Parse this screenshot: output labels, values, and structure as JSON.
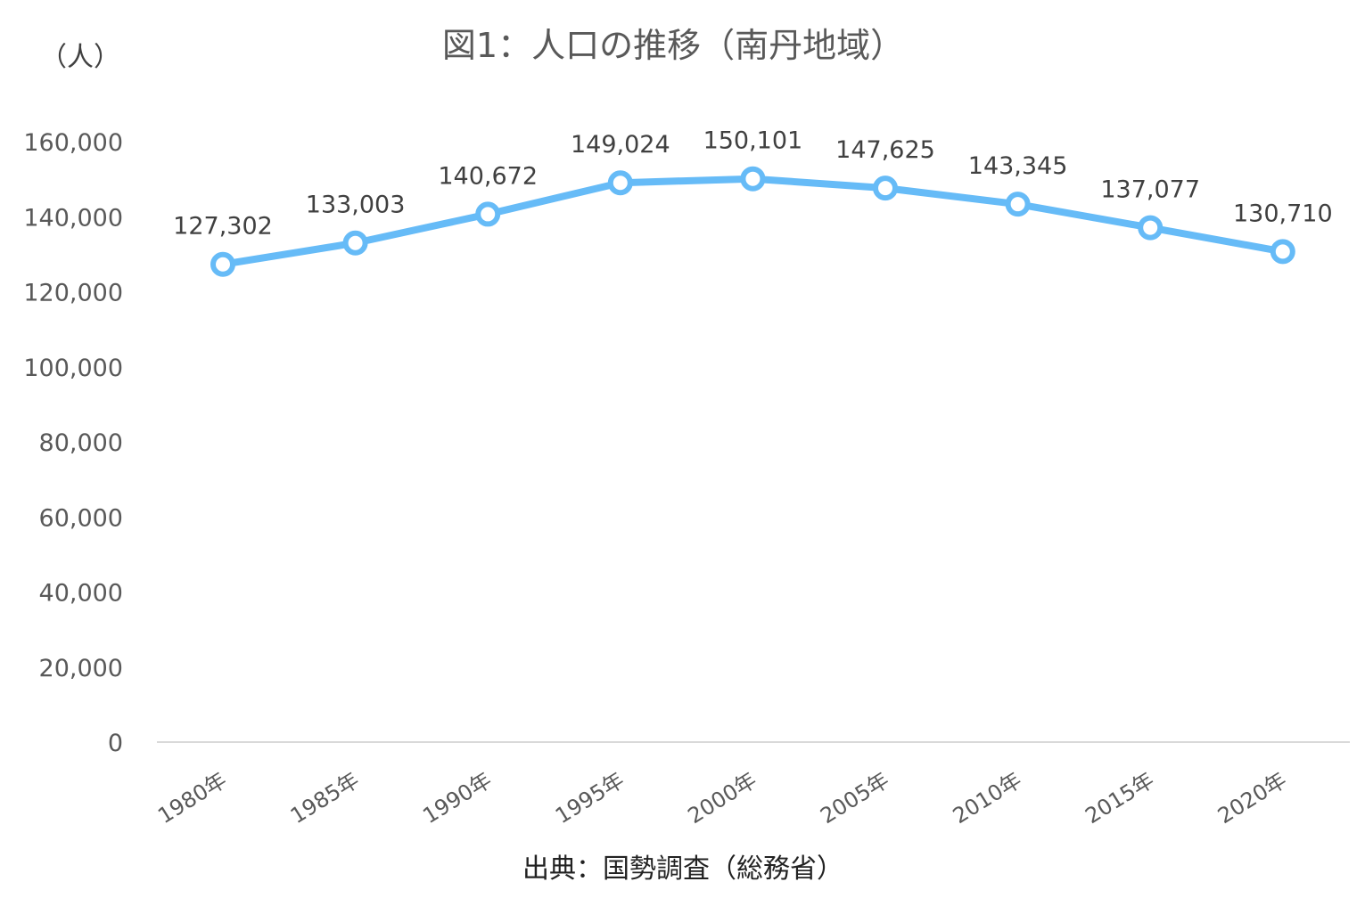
{
  "chart_data": {
    "type": "line",
    "title": "図1：人口の推移（南丹地域）",
    "ylabel": "（人）",
    "source": "出典：国勢調査（総務省）",
    "categories": [
      "1980年",
      "1985年",
      "1990年",
      "1995年",
      "2000年",
      "2005年",
      "2010年",
      "2015年",
      "2020年"
    ],
    "values": [
      127302,
      133003,
      140672,
      149024,
      150101,
      147625,
      143345,
      137077,
      130710
    ],
    "value_labels": [
      "127,302",
      "133,003",
      "140,672",
      "149,024",
      "150,101",
      "147,625",
      "143,345",
      "137,077",
      "130,710"
    ],
    "ylim": [
      0,
      160000
    ],
    "yticks": [
      0,
      20000,
      40000,
      60000,
      80000,
      100000,
      120000,
      140000,
      160000
    ],
    "ytick_labels": [
      "0",
      "20,000",
      "40,000",
      "60,000",
      "80,000",
      "100,000",
      "120,000",
      "140,000",
      "160,000"
    ],
    "grid": false,
    "legend": "none",
    "line_color": "#66bbf7",
    "marker_fill": "#ffffff",
    "axis_color": "#d9d9d9"
  }
}
